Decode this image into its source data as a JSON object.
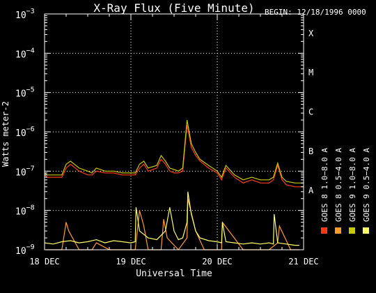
{
  "colors": {
    "background": "#000000",
    "axes": "#ffffff",
    "grid": "#ffffff",
    "goes8_long": "#ff3a10",
    "goes8_short": "#ff9a2a",
    "goes9_short": "#ffff66",
    "goes9_long": "#c8c800"
  },
  "chart_data": {
    "type": "line",
    "title": "X-Ray Flux (Five Minute)",
    "begin_label": "BEGIN: 12/18/1996 0000",
    "xlabel": "Universal Time",
    "ylabel": "Watts meter-2",
    "y_scale": "log",
    "ylim": [
      1e-09,
      0.001
    ],
    "xlim": [
      0,
      3
    ],
    "x_ticks": [
      0,
      1,
      2,
      3
    ],
    "x_tick_labels": [
      "18 DEC",
      "19 DEC",
      "20 DEC",
      "21 DEC"
    ],
    "y_ticks": [
      {
        "base": "10",
        "exp": "−3"
      },
      {
        "base": "10",
        "exp": "−4"
      },
      {
        "base": "10",
        "exp": "−5"
      },
      {
        "base": "10",
        "exp": "−6"
      },
      {
        "base": "10",
        "exp": "−7"
      },
      {
        "base": "10",
        "exp": "−8"
      },
      {
        "base": "10",
        "exp": "−9"
      }
    ],
    "flare_classes": [
      "X",
      "M",
      "C",
      "B",
      "A"
    ],
    "grid": true,
    "legend_position": "right",
    "series": [
      {
        "name": "GOES 8  1.0−8.0 A",
        "color_key": "goes8_long",
        "x": [
          0,
          0.03,
          0.1,
          0.2,
          0.25,
          0.3,
          0.4,
          0.5,
          0.55,
          0.6,
          0.7,
          0.8,
          0.9,
          1.0,
          1.05,
          1.1,
          1.15,
          1.2,
          1.3,
          1.35,
          1.4,
          1.45,
          1.5,
          1.55,
          1.6,
          1.65,
          1.7,
          1.75,
          1.8,
          1.9,
          2.0,
          2.05,
          2.1,
          2.2,
          2.3,
          2.4,
          2.5,
          2.6,
          2.65,
          2.7,
          2.75,
          2.8,
          2.9,
          2.95,
          3.0
        ],
        "y": [
          8e-08,
          7e-08,
          7e-08,
          7e-08,
          1.2e-07,
          1.5e-07,
          1e-07,
          8e-08,
          8e-08,
          1e-07,
          9e-08,
          9e-08,
          8e-08,
          8e-08,
          8e-08,
          1.2e-07,
          1.5e-07,
          1e-07,
          1.2e-07,
          2e-07,
          1.5e-07,
          1e-07,
          9e-08,
          9e-08,
          1e-07,
          1.5e-06,
          4e-07,
          2.5e-07,
          1.8e-07,
          1.2e-07,
          9e-08,
          6e-08,
          1.2e-07,
          7e-08,
          5e-08,
          6e-08,
          5e-08,
          5e-08,
          6e-08,
          1.4e-07,
          6e-08,
          4.5e-08,
          4e-08,
          4e-08,
          4e-08
        ]
      },
      {
        "name": "GOES 8  0.5−4.0 A",
        "color_key": "goes8_short",
        "x": [
          0.02,
          0.2,
          0.25,
          0.28,
          0.4,
          0.42,
          0.55,
          0.6,
          0.75,
          0.8,
          1.05,
          1.1,
          1.15,
          1.2,
          1.35,
          1.38,
          1.42,
          1.55,
          1.65,
          1.66,
          1.75,
          1.85,
          2.05,
          2.06,
          2.3,
          2.35,
          2.4,
          2.6,
          2.7,
          2.72,
          2.85,
          2.95
        ],
        "y": [
          1e-09,
          1e-09,
          5e-09,
          3e-09,
          1e-09,
          1e-09,
          1e-09,
          1.5e-09,
          1e-09,
          1e-09,
          1e-09,
          1e-08,
          4e-09,
          1e-09,
          1e-09,
          6e-09,
          2e-09,
          1e-09,
          2e-09,
          2e-08,
          3e-09,
          1e-09,
          1e-09,
          5e-09,
          1e-09,
          1e-09,
          1e-09,
          1e-09,
          1.5e-09,
          4e-09,
          1e-09,
          1e-09
        ]
      },
      {
        "name": "GOES 9  0.5−4.0 A",
        "color_key": "goes9_short",
        "x": [
          0,
          0.1,
          0.2,
          0.3,
          0.4,
          0.5,
          0.6,
          0.7,
          0.8,
          0.9,
          1.0,
          1.05,
          1.06,
          1.1,
          1.2,
          1.3,
          1.4,
          1.45,
          1.5,
          1.55,
          1.6,
          1.65,
          1.66,
          1.7,
          1.75,
          1.8,
          1.9,
          2.0,
          2.05,
          2.06,
          2.1,
          2.2,
          2.3,
          2.4,
          2.5,
          2.6,
          2.65,
          2.66,
          2.7,
          2.8,
          2.9,
          2.95
        ],
        "y": [
          1.5e-09,
          1.4e-09,
          1.6e-09,
          1.7e-09,
          1.5e-09,
          1.6e-09,
          1.8e-09,
          1.5e-09,
          1.7e-09,
          1.6e-09,
          1.5e-09,
          1.6e-09,
          1.2e-08,
          3e-09,
          2e-09,
          1.8e-09,
          3e-09,
          1.2e-08,
          3e-09,
          1.8e-09,
          2e-09,
          5e-09,
          3e-08,
          8e-09,
          3e-09,
          2e-09,
          1.7e-09,
          1.6e-09,
          1.5e-09,
          5e-09,
          1.6e-09,
          1.5e-09,
          1.4e-09,
          1.5e-09,
          1.4e-09,
          1.5e-09,
          1.4e-09,
          8e-09,
          1.5e-09,
          1.4e-09,
          1.3e-09,
          1.3e-09
        ]
      },
      {
        "name": "GOES 9  1.0−8.0 A",
        "color_key": "goes9_long",
        "x": [
          0,
          0.03,
          0.1,
          0.2,
          0.25,
          0.3,
          0.4,
          0.5,
          0.55,
          0.6,
          0.7,
          0.8,
          0.9,
          1.0,
          1.05,
          1.1,
          1.15,
          1.2,
          1.3,
          1.35,
          1.4,
          1.45,
          1.5,
          1.55,
          1.6,
          1.65,
          1.7,
          1.75,
          1.8,
          1.9,
          2.0,
          2.05,
          2.1,
          2.2,
          2.3,
          2.4,
          2.5,
          2.6,
          2.65,
          2.7,
          2.75,
          2.8,
          2.9,
          2.95,
          3.0
        ],
        "y": [
          9e-08,
          8e-08,
          8e-08,
          8e-08,
          1.5e-07,
          1.8e-07,
          1.2e-07,
          1e-07,
          9e-08,
          1.2e-07,
          1e-07,
          1e-07,
          9e-08,
          9e-08,
          9e-08,
          1.5e-07,
          1.8e-07,
          1.2e-07,
          1.4e-07,
          2.5e-07,
          1.8e-07,
          1.2e-07,
          1.1e-07,
          1e-07,
          1.2e-07,
          2e-06,
          5e-07,
          3e-07,
          2e-07,
          1.4e-07,
          1e-07,
          7e-08,
          1.4e-07,
          8e-08,
          6e-08,
          7e-08,
          6e-08,
          6e-08,
          7e-08,
          1.6e-07,
          7e-08,
          5.5e-08,
          5e-08,
          5e-08,
          5e-08
        ]
      }
    ]
  }
}
